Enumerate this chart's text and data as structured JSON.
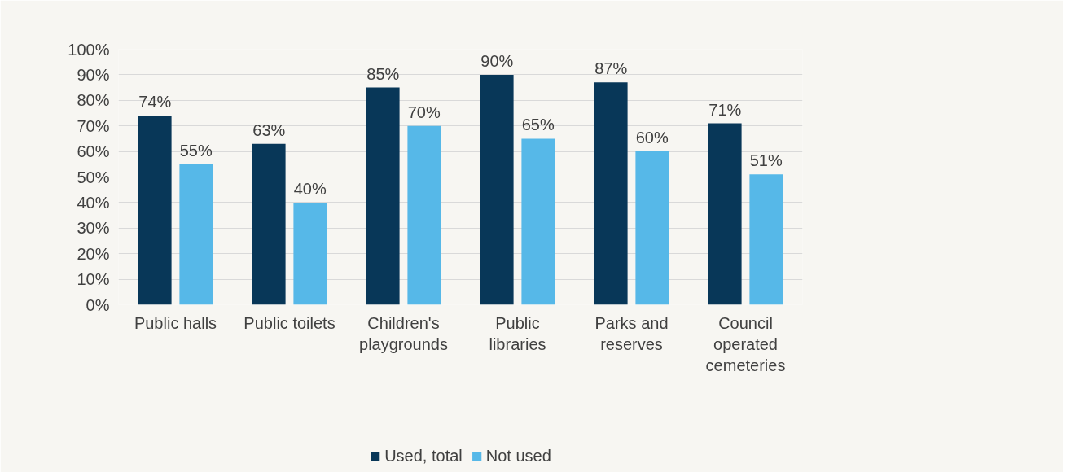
{
  "chart_data": {
    "type": "bar",
    "categories": [
      "Public halls",
      "Public toilets",
      "Children's\nplaygrounds",
      "Public\nlibraries",
      "Parks and\nreserves",
      "Council\noperated\ncemeteries"
    ],
    "series": [
      {
        "name": "Used, total",
        "color": "#083758",
        "values": [
          74,
          63,
          85,
          90,
          87,
          71
        ],
        "value_labels": [
          "74%",
          "63%",
          "85%",
          "90%",
          "87%",
          "71%"
        ]
      },
      {
        "name": "Not used",
        "color": "#56b8e8",
        "values": [
          55,
          40,
          70,
          65,
          60,
          51
        ],
        "value_labels": [
          "55%",
          "40%",
          "70%",
          "65%",
          "60%",
          "51%"
        ]
      }
    ],
    "ylim": [
      0,
      100
    ],
    "yticks": [
      {
        "value": 0,
        "label": "0%"
      },
      {
        "value": 10,
        "label": "10%"
      },
      {
        "value": 20,
        "label": "20%"
      },
      {
        "value": 30,
        "label": "30%"
      },
      {
        "value": 40,
        "label": "40%"
      },
      {
        "value": 50,
        "label": "50%"
      },
      {
        "value": 60,
        "label": "60%"
      },
      {
        "value": 70,
        "label": "70%"
      },
      {
        "value": 80,
        "label": "80%"
      },
      {
        "value": 90,
        "label": "90%"
      },
      {
        "value": 100,
        "label": "100%"
      }
    ],
    "grid": "y",
    "legend": "bottom"
  }
}
